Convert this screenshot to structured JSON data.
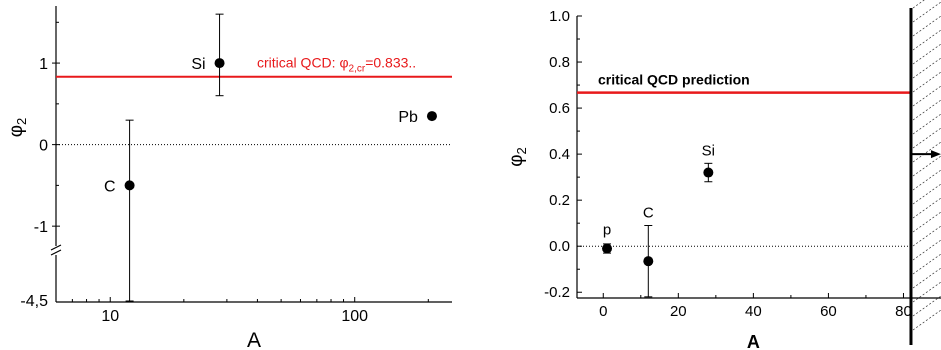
{
  "colors": {
    "axis": "#000000",
    "prediction": "#e8191b",
    "marker": "#000000"
  },
  "chart_data": [
    {
      "type": "scatter",
      "xscale": "log",
      "xlabel": "A",
      "ylabel": "φ2",
      "xlim": [
        6,
        250
      ],
      "ylim_upper": [
        -1.55,
        1.7
      ],
      "y_break": {
        "lower_label": "-4,5",
        "lower_value": -4.5
      },
      "xticks": [
        10,
        100
      ],
      "yticks": [
        -1,
        0,
        1
      ],
      "ytick_labels": [
        "-1",
        "0",
        "1"
      ],
      "zero_line": true,
      "reference_line": {
        "y": 0.833,
        "label": "critical QCD: φ2,cr=0.833..",
        "color": "#e8191b"
      },
      "points": [
        {
          "label": "Si",
          "x": 28,
          "y": 1.0,
          "yerr_low": 0.6,
          "yerr_high": 1.6
        },
        {
          "label": "C",
          "x": 12,
          "y": -0.5,
          "yerr_low": -4.5,
          "yerr_high": 0.3
        },
        {
          "label": "Pb",
          "x": 207,
          "y": 0.35
        }
      ]
    },
    {
      "type": "scatter",
      "xlabel": "A",
      "ylabel": "φ2",
      "xlim": [
        -7,
        90
      ],
      "ylim": [
        -0.225,
        1.0
      ],
      "xticks": [
        0,
        20,
        40,
        60,
        80
      ],
      "yticks": [
        -0.2,
        0.0,
        0.2,
        0.4,
        0.6,
        0.8,
        1.0
      ],
      "ytick_labels": [
        "-0.2",
        "0.0",
        "0.2",
        "0.4",
        "0.6",
        "0.8",
        "1.0"
      ],
      "zero_line": true,
      "reference_line": {
        "y": 0.667,
        "label": "critical QCD  prediction",
        "color": "#e8191b"
      },
      "boundary": {
        "x": 82
      },
      "points": [
        {
          "label": "p",
          "x": 1,
          "y": -0.01,
          "yerr_low": -0.03,
          "yerr_high": 0.01
        },
        {
          "label": "C",
          "x": 12,
          "y": -0.065,
          "yerr_low": -0.22,
          "yerr_high": 0.09
        },
        {
          "label": "Si",
          "x": 28,
          "y": 0.32,
          "yerr_low": 0.28,
          "yerr_high": 0.36
        }
      ]
    }
  ]
}
